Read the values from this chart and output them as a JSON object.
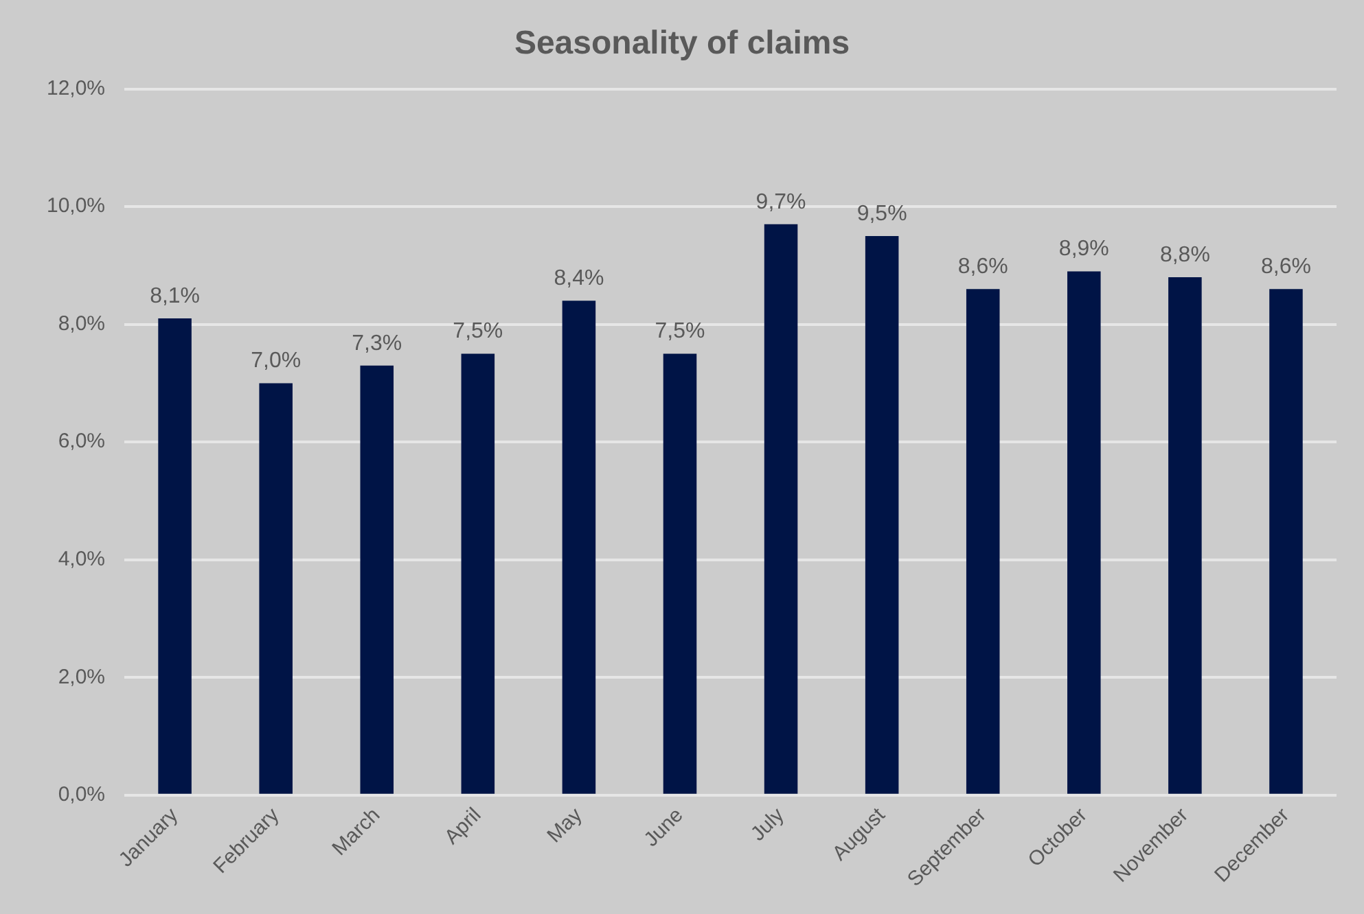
{
  "chart_data": {
    "type": "bar",
    "title": "Seasonality of claims",
    "categories": [
      "January",
      "February",
      "March",
      "April",
      "May",
      "June",
      "July",
      "August",
      "September",
      "October",
      "November",
      "December"
    ],
    "values": [
      8.1,
      7.0,
      7.3,
      7.5,
      8.4,
      7.5,
      9.7,
      9.5,
      8.6,
      8.9,
      8.8,
      8.6
    ],
    "value_labels": [
      "8,1%",
      "7,0%",
      "7,3%",
      "7,5%",
      "8,4%",
      "7,5%",
      "9,7%",
      "9,5%",
      "8,6%",
      "8,9%",
      "8,8%",
      "8,6%"
    ],
    "color": "#001446",
    "ylim": [
      0,
      12
    ],
    "yticks": [
      {
        "value": 0,
        "label": "0,0%"
      },
      {
        "value": 2,
        "label": "2,0%"
      },
      {
        "value": 4,
        "label": "4,0%"
      },
      {
        "value": 6,
        "label": "6,0%"
      },
      {
        "value": 8,
        "label": "8,0%"
      },
      {
        "value": 10,
        "label": "10,0%"
      },
      {
        "value": 12,
        "label": "12,0%"
      }
    ],
    "grid": "y",
    "legend": false
  }
}
